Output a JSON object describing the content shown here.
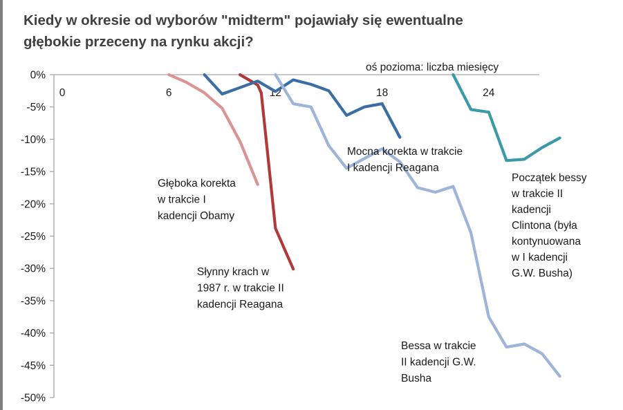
{
  "title_lines": [
    "Kiedy w okresie od wyborów \"midterm\" pojawiały się ewentualne",
    "głębokie przeceny na rynku akcji?"
  ],
  "colors": {
    "obama": "#d99594",
    "reagan_crash": "#b03a3a",
    "reagan_correction": "#3a6ea5",
    "bush": "#9eb4d8",
    "clinton": "#3a9aa8",
    "axis": "#a6a6a6",
    "text": "#1a1a1a"
  },
  "chart_data": {
    "type": "line",
    "title": "Kiedy w okresie od wyborów \"midterm\" pojawiały się ewentualne głębokie przeceny na rynku akcji?",
    "xlabel": "oś pozioma: liczba miesięcy",
    "ylabel": "",
    "xlim": [
      -0.5,
      28.5
    ],
    "ylim": [
      -50,
      0
    ],
    "x_ticks": [
      0,
      6,
      12,
      18,
      24
    ],
    "x_tick_labels": [
      "0",
      "6",
      "12",
      "18",
      "24"
    ],
    "y_ticks": [
      0,
      -5,
      -10,
      -15,
      -20,
      -25,
      -30,
      -35,
      -40,
      -45,
      -50
    ],
    "y_tick_labels": [
      "0%",
      "-5%",
      "-10%",
      "-15%",
      "-20%",
      "-25%",
      "-30%",
      "-35%",
      "-40%",
      "-45%",
      "-50%"
    ],
    "grid": false,
    "series": [
      {
        "key": "obama",
        "name": "Głęboka korekta w trakcie I kadencji Obamy",
        "x": [
          6,
          7,
          8,
          9,
          10,
          11
        ],
        "y": [
          0,
          -1.2,
          -2.8,
          -5.2,
          -10.3,
          -17.0
        ]
      },
      {
        "key": "reagan_crash",
        "name": "Słynny krach w 1987 r. w trakcie II kadencji Reagana",
        "x": [
          10,
          11,
          11.2,
          12,
          13
        ],
        "y": [
          0,
          -1.6,
          -2.8,
          -23.8,
          -30.1
        ]
      },
      {
        "key": "reagan_correction",
        "name": "Mocna korekta w trakcie I kadencji Reagana",
        "x": [
          8,
          9,
          10,
          11,
          12,
          13,
          14,
          15,
          16,
          17,
          18,
          19
        ],
        "y": [
          0,
          -3.0,
          -2.0,
          -1.0,
          -2.6,
          -0.8,
          -1.5,
          -2.5,
          -6.3,
          -5.0,
          -4.5,
          -9.7
        ]
      },
      {
        "key": "bush",
        "name": "Bessa w trakcie II kadencji G.W. Busha",
        "x": [
          12,
          13,
          14,
          15,
          16,
          17,
          18,
          19,
          20,
          21,
          22,
          23,
          24,
          25,
          26,
          27,
          28
        ],
        "y": [
          0,
          -4.5,
          -5.0,
          -11.0,
          -14.5,
          -13.0,
          -11.5,
          -13.5,
          -17.5,
          -18.2,
          -17.3,
          -24.5,
          -37.5,
          -42.2,
          -41.7,
          -43.2,
          -46.7
        ]
      },
      {
        "key": "clinton",
        "name": "Początek bessy w trakcie II kadencji Clintona (była kontynuowana w I kadencji G.W. Busha)",
        "x": [
          22,
          23,
          24,
          25,
          26,
          27,
          28
        ],
        "y": [
          0,
          -5.4,
          -5.8,
          -13.3,
          -13.1,
          -11.3,
          -9.8
        ]
      }
    ],
    "annotations": [
      {
        "series": "obama",
        "lines": [
          "Głęboka korekta",
          "w trakcie I",
          "kadencji Obamy"
        ]
      },
      {
        "series": "reagan_crash",
        "lines": [
          "Słynny krach w",
          "1987 r. w trakcie II",
          "kadencji Reagana"
        ]
      },
      {
        "series": "reagan_correction",
        "lines": [
          "Mocna korekta w trakcie",
          "I kadencji Reagana"
        ]
      },
      {
        "series": "bush",
        "lines": [
          "Bessa w trakcie",
          "II kadencji G.W.",
          "Busha"
        ]
      },
      {
        "series": "clinton",
        "lines": [
          "Początek bessy",
          "w trakcie II",
          "kadencji",
          "Clintona (była",
          "kontynuowana",
          "w I kadencji",
          "G.W. Busha)"
        ]
      }
    ]
  }
}
